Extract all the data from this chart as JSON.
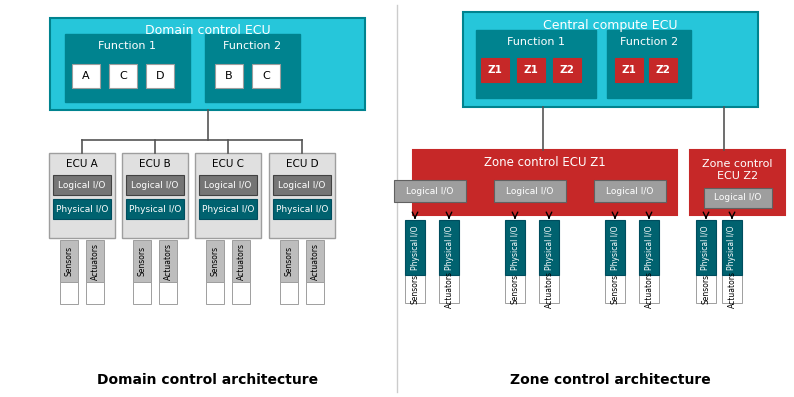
{
  "fig_width": 7.94,
  "fig_height": 3.97,
  "bg_color": "#ffffff",
  "teal_dark": "#00838F",
  "teal_light": "#26C6DA",
  "red_zone": "#C62828",
  "gray_ecu": "#E0E0E0",
  "gray_logical": "#757575",
  "physical_teal": "#00626F",
  "white": "#ffffff",
  "border_dark": "#555555",
  "border_light": "#9E9E9E",
  "left_title": "Domain control architecture",
  "right_title": "Zone control architecture",
  "domain_ecu_label": "Domain control ECU",
  "central_ecu_label": "Central compute ECU",
  "func1_label": "Function 1",
  "func2_label": "Function 2",
  "domain_func1_items": [
    "A",
    "C",
    "D"
  ],
  "domain_func2_items": [
    "B",
    "C"
  ],
  "zone_func1_items": [
    "Z1",
    "Z1",
    "Z2"
  ],
  "zone_func2_items": [
    "Z1",
    "Z2"
  ],
  "ecu_labels": [
    "ECU A",
    "ECU B",
    "ECU C",
    "ECU D"
  ],
  "zone_z1_label": "Zone control ECU Z1",
  "zone_z2_label": "Zone control\nECU Z2"
}
